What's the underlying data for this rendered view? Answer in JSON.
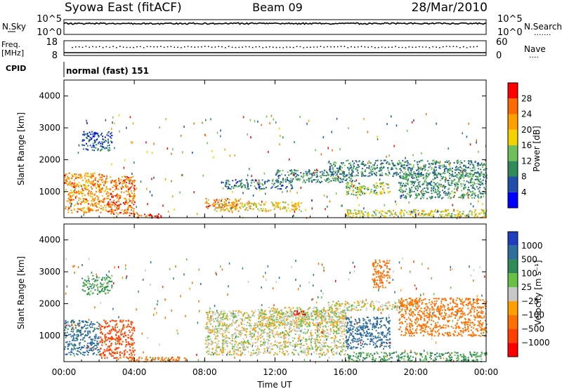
{
  "header": {
    "station": "Syowa East (fitACF)",
    "beam": "Beam 09",
    "date": "28/Mar/2010"
  },
  "summary_panels": {
    "nsky_label": "N.Sky",
    "nsearch_label": "N.Search",
    "noise_ticks": [
      "10^5",
      "10^0"
    ],
    "freq_label_1": "Freq.",
    "freq_label_2": "[MHz]",
    "freq_ticks": [
      "18",
      "8"
    ],
    "nave_label": "Nave",
    "nave_ticks": [
      "60",
      "0"
    ],
    "cpid_label": "CPID",
    "cpid_text": "normal (fast) 151"
  },
  "colors": {
    "power_scale": [
      "#0000ff",
      "#1f4fa8",
      "#2e8b57",
      "#6fbf5a",
      "#f4d200",
      "#ff9f00",
      "#ff6a00",
      "#ff0000"
    ],
    "velocity_scale": [
      "#1f3fbf",
      "#2e6e9e",
      "#2e8b57",
      "#66c144",
      "#c8c8c8",
      "#ffa000",
      "#ff7000",
      "#ff4000",
      "#ff0000"
    ]
  },
  "chart_data": [
    {
      "type": "heatmap",
      "panel": "power",
      "ylabel": "Slant Range [km]",
      "xlabel": "",
      "yticks": [
        "1000",
        "2000",
        "3000",
        "4000"
      ],
      "ylim": [
        180,
        4500
      ],
      "colorbar_label": "Power [dB]",
      "colorbar_ticks": [
        "4",
        "8",
        "12",
        "16",
        "20",
        "24",
        "28"
      ],
      "colorbar_range": [
        0,
        30
      ],
      "regions": [
        {
          "t0": 0.0,
          "t1": 2.5,
          "r0": 350,
          "r1": 1600,
          "value": 22
        },
        {
          "t0": 2.5,
          "t1": 4.0,
          "r0": 300,
          "r1": 1500,
          "value": 24
        },
        {
          "t0": 3.6,
          "t1": 5.5,
          "r0": 190,
          "r1": 350,
          "value": 26
        },
        {
          "t0": 1.0,
          "t1": 2.7,
          "r0": 2300,
          "r1": 2900,
          "value": 6
        },
        {
          "t0": 8.0,
          "t1": 10.0,
          "r0": 500,
          "r1": 800,
          "value": 24
        },
        {
          "t0": 9.0,
          "t1": 13.0,
          "r0": 1100,
          "r1": 1400,
          "value": 8
        },
        {
          "t0": 8.5,
          "t1": 13.5,
          "r0": 400,
          "r1": 700,
          "value": 18
        },
        {
          "t0": 12.0,
          "t1": 16.5,
          "r0": 1300,
          "r1": 1700,
          "value": 9
        },
        {
          "t0": 15.0,
          "t1": 24.0,
          "r0": 1500,
          "r1": 2000,
          "value": 9
        },
        {
          "t0": 16.0,
          "t1": 18.5,
          "r0": 900,
          "r1": 1300,
          "value": 14
        },
        {
          "t0": 16.0,
          "t1": 24.0,
          "r0": 200,
          "r1": 450,
          "value": 16
        },
        {
          "t0": 19.0,
          "t1": 24.0,
          "r0": 800,
          "r1": 1600,
          "value": 10
        }
      ]
    },
    {
      "type": "heatmap",
      "panel": "velocity",
      "ylabel": "Slant Range [km]",
      "xlabel": "Time UT",
      "xticks": [
        "00:00",
        "04:00",
        "08:00",
        "12:00",
        "16:00",
        "20:00",
        "00:00"
      ],
      "xlim": [
        0,
        24
      ],
      "yticks": [
        "1000",
        "2000",
        "3000",
        "4000"
      ],
      "ylim": [
        180,
        4500
      ],
      "colorbar_label": "Velocity [m s⁻¹]",
      "colorbar_ticks": [
        "1000",
        "500",
        "100",
        "25",
        "−25",
        "−100",
        "−500",
        "−1000"
      ],
      "regions": [
        {
          "t0": 0.0,
          "t1": 2.0,
          "r0": 400,
          "r1": 1500,
          "value": 300
        },
        {
          "t0": 2.0,
          "t1": 4.0,
          "r0": 300,
          "r1": 1500,
          "value": -300
        },
        {
          "t0": 3.6,
          "t1": 7.0,
          "r0": 190,
          "r1": 350,
          "value": -200
        },
        {
          "t0": 1.0,
          "t1": 2.7,
          "r0": 2300,
          "r1": 2900,
          "value": 80
        },
        {
          "t0": 8.0,
          "t1": 16.0,
          "r0": 400,
          "r1": 1800,
          "value": 0
        },
        {
          "t0": 11.0,
          "t1": 16.0,
          "r0": 1300,
          "r1": 1900,
          "value": 0
        },
        {
          "t0": 15.0,
          "t1": 20.0,
          "r0": 1800,
          "r1": 2100,
          "value": 0
        },
        {
          "t0": 13.0,
          "t1": 13.7,
          "r0": 1650,
          "r1": 1800,
          "value": -900
        },
        {
          "t0": 16.0,
          "t1": 18.5,
          "r0": 600,
          "r1": 1600,
          "value": 400
        },
        {
          "t0": 16.0,
          "t1": 24.0,
          "r0": 200,
          "r1": 500,
          "value": 90
        },
        {
          "t0": 17.5,
          "t1": 18.5,
          "r0": 2500,
          "r1": 3400,
          "value": -200
        },
        {
          "t0": 19.0,
          "t1": 24.0,
          "r0": 1000,
          "r1": 2200,
          "value": -150
        }
      ]
    }
  ]
}
